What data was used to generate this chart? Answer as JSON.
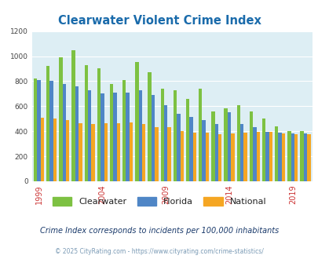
{
  "title": "Clearwater Violent Crime Index",
  "years": [
    1999,
    2000,
    2001,
    2002,
    2003,
    2004,
    2005,
    2006,
    2007,
    2008,
    2009,
    2010,
    2011,
    2012,
    2013,
    2014,
    2015,
    2016,
    2017,
    2018,
    2019,
    2020
  ],
  "clearwater": [
    820,
    920,
    990,
    1050,
    930,
    900,
    780,
    810,
    950,
    870,
    740,
    730,
    660,
    740,
    560,
    580,
    610,
    555,
    500,
    440,
    400,
    400
  ],
  "florida": [
    810,
    800,
    780,
    760,
    730,
    705,
    710,
    710,
    730,
    690,
    610,
    540,
    515,
    490,
    460,
    550,
    460,
    430,
    395,
    390,
    385,
    380
  ],
  "national": [
    510,
    500,
    490,
    465,
    455,
    465,
    465,
    470,
    455,
    430,
    435,
    400,
    390,
    390,
    375,
    380,
    390,
    395,
    395,
    380,
    375,
    375
  ],
  "colors": {
    "clearwater": "#7dc142",
    "florida": "#4f86c6",
    "national": "#f5a623"
  },
  "ylim": [
    0,
    1200
  ],
  "yticks": [
    0,
    200,
    400,
    600,
    800,
    1000,
    1200
  ],
  "xtick_years": [
    1999,
    2004,
    2009,
    2014,
    2019
  ],
  "background_color": "#ddeef4",
  "subtitle": "Crime Index corresponds to incidents per 100,000 inhabitants",
  "footer": "© 2025 CityRating.com - https://www.cityrating.com/crime-statistics/",
  "title_color": "#1a6bab",
  "subtitle_color": "#1a3a6b",
  "footer_color": "#7a9ab5",
  "legend_label_color": "#222222",
  "xtick_color": "#cc3333"
}
